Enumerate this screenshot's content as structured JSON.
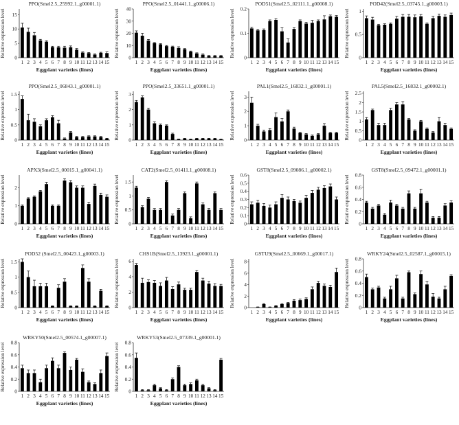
{
  "chart_data": [
    {
      "type": "bar",
      "title": "PPO(Smel2.5_25992.1_g00001.1)",
      "xlabel": "Eggplant varieties (lines)",
      "ylabel": "Relative expression level",
      "categories": [
        "1",
        "2",
        "3",
        "4",
        "5",
        "6",
        "7",
        "8",
        "9",
        "10",
        "11",
        "12",
        "13",
        "14",
        "15"
      ],
      "yticks": [
        "0",
        "5",
        "10",
        "15"
      ],
      "ylim": [
        0,
        17
      ],
      "values": [
        10.5,
        9.0,
        7.8,
        6.0,
        5.6,
        3.7,
        3.6,
        3.5,
        3.6,
        2.8,
        1.8,
        1.6,
        1.1,
        1.7,
        1.6
      ],
      "errors": [
        1.5,
        1.3,
        1.0,
        0.4,
        0.3,
        0.3,
        0.4,
        0.5,
        0.5,
        0.4,
        0.2,
        0.2,
        0.2,
        0.2,
        0.4
      ]
    },
    {
      "type": "bar",
      "title": "PPO(Smel2.5_01441.1_g00006.1)",
      "xlabel": "Eggplant varieties (lines)",
      "ylabel": "Relative expression level",
      "categories": [
        "1",
        "2",
        "3",
        "4",
        "5",
        "6",
        "7",
        "8",
        "9",
        "10",
        "11",
        "12",
        "13",
        "14",
        "15"
      ],
      "yticks": [
        "0",
        "10",
        "20",
        "30",
        "40"
      ],
      "ylim": [
        0,
        40
      ],
      "values": [
        20.5,
        18,
        14,
        12,
        11,
        9.5,
        9,
        8,
        7,
        5,
        3.5,
        2.5,
        1.5,
        1.5,
        1.5
      ],
      "errors": [
        1.5,
        2.0,
        1.0,
        0.5,
        0.5,
        0.5,
        0.5,
        1.0,
        0.5,
        0.5,
        0.5,
        0.5,
        0.3,
        0.3,
        0.3
      ]
    },
    {
      "type": "bar",
      "title": "POD51(Smel2.5_02111.1_g00008.1)",
      "xlabel": "Eggplant varieties (lines)",
      "ylabel": "Relative expression level",
      "categories": [
        "1",
        "2",
        "3",
        "4",
        "5",
        "6",
        "7",
        "8",
        "9",
        "10",
        "11",
        "12",
        "13",
        "14",
        "15"
      ],
      "yticks": [
        "0",
        "0.1",
        "0.2"
      ],
      "ylim": [
        0,
        0.2
      ],
      "values": [
        0.12,
        0.112,
        0.113,
        0.15,
        0.155,
        0.108,
        0.062,
        0.118,
        0.15,
        0.14,
        0.143,
        0.15,
        0.157,
        0.17,
        0.168
      ],
      "errors": [
        0.005,
        0.005,
        0.005,
        0.005,
        0.005,
        0.015,
        0.015,
        0.005,
        0.005,
        0.005,
        0.01,
        0.005,
        0.015,
        0.005,
        0.005
      ]
    },
    {
      "type": "bar",
      "title": "POD42(Smel2.5_03745.1_g00003.1)",
      "xlabel": "Eggplant varieties (lines)",
      "ylabel": "Relative expression level",
      "categories": [
        "1",
        "2",
        "3",
        "4",
        "5",
        "6",
        "7",
        "8",
        "9",
        "10",
        "11",
        "12",
        "13",
        "14",
        "15"
      ],
      "yticks": [
        "0",
        "0.5",
        "1"
      ],
      "ylim": [
        0,
        1.05
      ],
      "values": [
        0.85,
        0.82,
        0.7,
        0.71,
        0.73,
        0.84,
        0.88,
        0.88,
        0.87,
        0.89,
        0.73,
        0.85,
        0.9,
        0.88,
        0.92
      ],
      "errors": [
        0.05,
        0.05,
        0.02,
        0.02,
        0.02,
        0.05,
        0.05,
        0.05,
        0.05,
        0.04,
        0.02,
        0.04,
        0.04,
        0.04,
        0.04
      ]
    },
    {
      "type": "bar",
      "title": "PPO(Smel2.5_06843.1_g00001.1)",
      "xlabel": "Eggplant varieties (lines)",
      "ylabel": "Relative expression level",
      "categories": [
        "1",
        "2",
        "3",
        "4",
        "5",
        "6",
        "7",
        "8",
        "9",
        "10",
        "11",
        "12",
        "13",
        "14",
        "15"
      ],
      "yticks": [
        "0",
        "0.5",
        "1",
        "1.5"
      ],
      "ylim": [
        0,
        1.6
      ],
      "values": [
        1.35,
        0.65,
        0.6,
        0.45,
        0.65,
        0.75,
        0.55,
        0.05,
        0.25,
        0.1,
        0.1,
        0.12,
        0.12,
        0.1,
        0.05
      ],
      "errors": [
        0.1,
        0.2,
        0.1,
        0.05,
        0.05,
        0.05,
        0.1,
        0.02,
        0.03,
        0.02,
        0.02,
        0.02,
        0.02,
        0.02,
        0.01
      ]
    },
    {
      "type": "bar",
      "title": "PPO(Smel2.5_33651.1_g00001.1)",
      "xlabel": "Eggplant varieties (lines)",
      "ylabel": "Relative expression level",
      "categories": [
        "1",
        "2",
        "3",
        "4",
        "5",
        "6",
        "7",
        "8",
        "9",
        "10",
        "11",
        "12",
        "13",
        "14",
        "15"
      ],
      "yticks": [
        "0",
        "1",
        "2",
        "3"
      ],
      "ylim": [
        0,
        3.2
      ],
      "values": [
        2.5,
        2.8,
        2.0,
        1.1,
        1.0,
        0.95,
        0.4,
        0.05,
        0.1,
        0.05,
        0.1,
        0.1,
        0.1,
        0.1,
        0.05
      ],
      "errors": [
        0.1,
        0.1,
        0.1,
        0.1,
        0.05,
        0.05,
        0.05,
        0.02,
        0.02,
        0.02,
        0.02,
        0.02,
        0.02,
        0.02,
        0.01
      ]
    },
    {
      "type": "bar",
      "title": "PAL1(Smel2.5_16832.1_g00001.1)",
      "xlabel": "Eggplant varieties (lines)",
      "ylabel": "Relative expression level",
      "categories": [
        "1",
        "2",
        "3",
        "4",
        "5",
        "6",
        "7",
        "8",
        "9",
        "10",
        "11",
        "12",
        "13",
        "14",
        "15"
      ],
      "yticks": [
        "0",
        "1",
        "2",
        "3"
      ],
      "ylim": [
        0,
        3.4
      ],
      "values": [
        2.6,
        1.0,
        0.6,
        0.7,
        1.6,
        1.3,
        2.0,
        0.8,
        0.5,
        0.4,
        0.3,
        0.4,
        1.0,
        0.5,
        0.5
      ],
      "errors": [
        0.4,
        0.1,
        0.1,
        0.1,
        0.3,
        0.2,
        0.1,
        0.1,
        0.05,
        0.05,
        0.05,
        0.05,
        0.15,
        0.05,
        0.05
      ]
    },
    {
      "type": "bar",
      "title": "PAL5(Smel2.5_16832.1_g00002.1)",
      "xlabel": "Eggplant varieties (lines)",
      "ylabel": "Relative expression level",
      "categories": [
        "1",
        "2",
        "3",
        "4",
        "5",
        "6",
        "7",
        "8",
        "9",
        "10",
        "11",
        "12",
        "13",
        "14",
        "15"
      ],
      "yticks": [
        "0",
        "0.5",
        "1",
        "1.5",
        "2",
        "2.5"
      ],
      "ylim": [
        0,
        2.6
      ],
      "values": [
        1.1,
        1.6,
        0.8,
        0.8,
        1.6,
        1.9,
        1.9,
        1.1,
        0.5,
        1.0,
        0.6,
        0.4,
        1.0,
        0.8,
        0.6
      ],
      "errors": [
        0.1,
        0.05,
        0.1,
        0.1,
        0.1,
        0.1,
        0.15,
        0.05,
        0.05,
        0.05,
        0.05,
        0.05,
        0.2,
        0.1,
        0.05
      ]
    },
    {
      "type": "bar",
      "title": "APX3(Smel2.5_00015.1_g00041.1)",
      "xlabel": "Eggplant varieties (lines)",
      "ylabel": "Relative expression level",
      "categories": [
        "1",
        "2",
        "3",
        "4",
        "5",
        "6",
        "7",
        "8",
        "9",
        "10",
        "11",
        "12",
        "13",
        "14",
        "15"
      ],
      "yticks": [
        "0",
        "1",
        "2"
      ],
      "ylim": [
        0,
        2.7
      ],
      "values": [
        1.0,
        1.4,
        1.5,
        1.8,
        2.2,
        1.0,
        1.0,
        2.4,
        2.3,
        2.0,
        2.0,
        1.1,
        2.1,
        1.6,
        1.5
      ],
      "errors": [
        0.05,
        0.05,
        0.05,
        0.05,
        0.1,
        0.05,
        0.05,
        0.1,
        0.1,
        0.1,
        0.1,
        0.1,
        0.1,
        0.1,
        0.1
      ]
    },
    {
      "type": "bar",
      "title": "CAT2(Smel2.5_01411.1_g00008.1)",
      "xlabel": "Eggplant varieties (lines)",
      "ylabel": "Relative expression level",
      "categories": [
        "1",
        "2",
        "3",
        "4",
        "5",
        "6",
        "7",
        "8",
        "9",
        "10",
        "11",
        "12",
        "13",
        "14",
        "15"
      ],
      "yticks": [
        "0",
        "0.5",
        "1",
        "1.5"
      ],
      "ylim": [
        0,
        1.75
      ],
      "values": [
        1.3,
        0.6,
        0.9,
        0.5,
        0.5,
        1.5,
        0.3,
        0.5,
        1.1,
        0.2,
        1.45,
        0.7,
        0.5,
        1.1,
        0.5
      ],
      "errors": [
        0.05,
        0.05,
        0.05,
        0.05,
        0.05,
        0.05,
        0.05,
        0.05,
        0.05,
        0.05,
        0.05,
        0.05,
        0.05,
        0.05,
        0.05
      ]
    },
    {
      "type": "bar",
      "title": "GST8(Smel2.5_09086.1_g00002.1)",
      "xlabel": "Eggplant varieties (lines)",
      "ylabel": "Relative expression level",
      "categories": [
        "1",
        "2",
        "3",
        "4",
        "5",
        "6",
        "7",
        "8",
        "9",
        "10",
        "11",
        "12",
        "13",
        "14",
        "15"
      ],
      "yticks": [
        "0",
        "0.1",
        "0.2",
        "0.3",
        "0.4",
        "0.5",
        "0.6"
      ],
      "ylim": [
        0,
        0.6
      ],
      "values": [
        0.24,
        0.26,
        0.22,
        0.2,
        0.24,
        0.32,
        0.3,
        0.28,
        0.26,
        0.32,
        0.38,
        0.42,
        0.44,
        0.46,
        0.3
      ],
      "errors": [
        0.03,
        0.03,
        0.03,
        0.03,
        0.03,
        0.04,
        0.03,
        0.02,
        0.02,
        0.03,
        0.03,
        0.03,
        0.03,
        0.03,
        0.03
      ]
    },
    {
      "type": "bar",
      "title": "GST8(Smel2.5_09472.1_g00001.1)",
      "xlabel": "Eggplant varieties (lines)",
      "ylabel": "Relative expression level",
      "categories": [
        "1",
        "2",
        "3",
        "4",
        "5",
        "6",
        "7",
        "8",
        "9",
        "10",
        "11",
        "12",
        "13",
        "14",
        "15"
      ],
      "yticks": [
        "0",
        "0.2",
        "0.4",
        "0.6",
        "0.8"
      ],
      "ylim": [
        0,
        0.8
      ],
      "values": [
        0.35,
        0.25,
        0.3,
        0.15,
        0.35,
        0.3,
        0.25,
        0.5,
        0.25,
        0.5,
        0.35,
        0.1,
        0.1,
        0.3,
        0.35
      ],
      "errors": [
        0.02,
        0.02,
        0.02,
        0.02,
        0.04,
        0.02,
        0.02,
        0.04,
        0.02,
        0.07,
        0.02,
        0.02,
        0.02,
        0.03,
        0.03
      ]
    },
    {
      "type": "bar",
      "title": "POD52 (Smel2.5_00423.1_g00003.1)",
      "xlabel": "Eggplant varieties (lines)",
      "ylabel": "Relative expression level",
      "categories": [
        "1",
        "2",
        "3",
        "4",
        "5",
        "6",
        "7",
        "8",
        "9",
        "10",
        "11",
        "12",
        "13",
        "14",
        "15"
      ],
      "yticks": [
        "0",
        "0.5",
        "1",
        "1.5"
      ],
      "ylim": [
        0,
        1.6
      ],
      "values": [
        1.5,
        1.0,
        0.7,
        0.7,
        0.7,
        0.05,
        0.65,
        0.85,
        0.05,
        0.05,
        1.3,
        0.85,
        0.05,
        0.55,
        0.05
      ],
      "errors": [
        0.1,
        0.2,
        0.2,
        0.1,
        0.1,
        0.01,
        0.1,
        0.1,
        0.01,
        0.01,
        0.1,
        0.1,
        0.01,
        0.05,
        0.01
      ]
    },
    {
      "type": "bar",
      "title": "CHS1B(Smel2.5_13923.1_g00001.1)",
      "xlabel": "Eggplant varieties (lines)",
      "ylabel": "Relative expression level",
      "categories": [
        "1",
        "2",
        "3",
        "4",
        "5",
        "6",
        "7",
        "8",
        "9",
        "10",
        "11",
        "12",
        "13",
        "14",
        "15"
      ],
      "yticks": [
        "0",
        "2",
        "4",
        "6"
      ],
      "ylim": [
        0,
        6.3
      ],
      "values": [
        5.5,
        3.2,
        3.3,
        3.2,
        2.8,
        3.5,
        2.4,
        3.0,
        2.3,
        2.3,
        4.6,
        3.5,
        3.1,
        2.8,
        2.8
      ],
      "errors": [
        0.2,
        0.6,
        0.3,
        0.3,
        0.4,
        0.4,
        0.3,
        0.3,
        0.2,
        0.2,
        0.2,
        0.3,
        0.3,
        0.3,
        0.2
      ]
    },
    {
      "type": "bar",
      "title": "GSTU9(Smel2.5_00669.1_g00017.1)",
      "xlabel": "Eggplant varieties (lines)",
      "ylabel": "Relative expression level",
      "categories": [
        "1",
        "2",
        "3",
        "4",
        "5",
        "6",
        "7",
        "8",
        "9",
        "10",
        "11",
        "12",
        "13",
        "14",
        "15"
      ],
      "yticks": [
        "0",
        "2",
        "4",
        "6",
        "8"
      ],
      "ylim": [
        0,
        8.5
      ],
      "values": [
        0,
        0.1,
        0.6,
        0.1,
        0.3,
        0.6,
        0.8,
        1.2,
        1.3,
        1.5,
        3.2,
        4.3,
        3.8,
        3.6,
        6.2
      ],
      "errors": [
        0,
        0.02,
        0.1,
        0.02,
        0.05,
        0.1,
        0.1,
        0.2,
        0.2,
        0.2,
        0.4,
        0.3,
        0.3,
        0.3,
        0.7
      ]
    },
    {
      "type": "bar",
      "title": "WRKY24(Smel2.5_02587.1_g00015.1)",
      "xlabel": "Eggplant varieties (lines)",
      "ylabel": "Relative expression level",
      "categories": [
        "1",
        "2",
        "3",
        "4",
        "5",
        "6",
        "7",
        "8",
        "9",
        "10",
        "11",
        "12",
        "13",
        "14",
        "15"
      ],
      "yticks": [
        "0",
        "0.2",
        "0.4",
        "0.6",
        "0.8"
      ],
      "ylim": [
        0,
        0.8
      ],
      "values": [
        0.5,
        0.3,
        0.33,
        0.15,
        0.3,
        0.48,
        0.15,
        0.58,
        0.22,
        0.55,
        0.38,
        0.18,
        0.15,
        0.3,
        0.52
      ],
      "errors": [
        0.05,
        0.02,
        0.02,
        0.02,
        0.05,
        0.05,
        0.02,
        0.02,
        0.02,
        0.05,
        0.05,
        0.05,
        0.02,
        0.05,
        0.02
      ]
    },
    {
      "type": "bar",
      "title": "WRKY50(Smel2.5_00574.1_g00007.1)",
      "xlabel": "Eggplant varieties (lines)",
      "ylabel": "Relative expression level",
      "categories": [
        "1",
        "2",
        "3",
        "4",
        "5",
        "6",
        "7",
        "8",
        "9",
        "10",
        "11",
        "12",
        "13",
        "14",
        "15"
      ],
      "yticks": [
        "0",
        "0.2",
        "0.4",
        "0.6",
        "0.8"
      ],
      "ylim": [
        0,
        0.8
      ],
      "values": [
        0.38,
        0.3,
        0.3,
        0.15,
        0.38,
        0.5,
        0.38,
        0.63,
        0.35,
        0.52,
        0.32,
        0.15,
        0.12,
        0.3,
        0.58
      ],
      "errors": [
        0.05,
        0.05,
        0.05,
        0.05,
        0.05,
        0.05,
        0.05,
        0.02,
        0.05,
        0.02,
        0.05,
        0.02,
        0.02,
        0.05,
        0.05
      ]
    },
    {
      "type": "bar",
      "title": "WRKY53(Smel2.5_07339.1_g00001.1)",
      "xlabel": "Eggplant varieties (lines)",
      "ylabel": "Relative expression level",
      "categories": [
        "1",
        "2",
        "3",
        "4",
        "5",
        "6",
        "7",
        "8",
        "9",
        "10",
        "11",
        "12",
        "13",
        "14",
        "15"
      ],
      "yticks": [
        "0",
        "0.2",
        "0.4",
        "0.6",
        "0.8"
      ],
      "ylim": [
        0,
        0.8
      ],
      "values": [
        0.55,
        0.02,
        0.02,
        0.1,
        0.05,
        0.02,
        0.2,
        0.4,
        0.1,
        0.12,
        0.18,
        0.1,
        0.05,
        0.02,
        0.52
      ],
      "errors": [
        0.08,
        0.01,
        0.01,
        0.02,
        0.01,
        0.01,
        0.02,
        0.02,
        0.02,
        0.02,
        0.02,
        0.02,
        0.01,
        0.01,
        0.02
      ]
    }
  ]
}
